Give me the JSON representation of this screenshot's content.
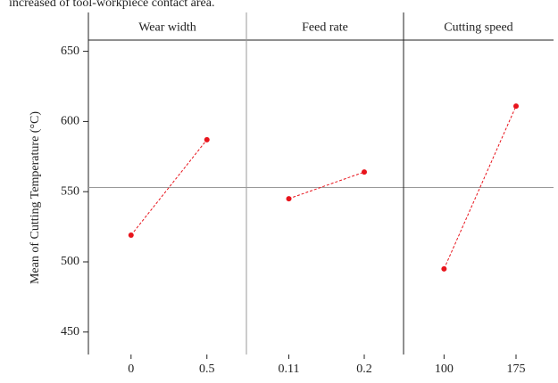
{
  "caption": "increased of tool-workpiece contact area.",
  "chart_data": {
    "type": "main-effects",
    "y_label": "Mean of Cutting Temperature (°C)",
    "panels": [
      {
        "name": "Wear width",
        "categories": [
          "0",
          "0.5"
        ],
        "values": [
          519,
          587
        ]
      },
      {
        "name": "Feed rate",
        "categories": [
          "0.11",
          "0.2"
        ],
        "values": [
          545,
          564
        ]
      },
      {
        "name": "Cutting speed",
        "categories": [
          "100",
          "175"
        ],
        "values": [
          495,
          611
        ]
      }
    ],
    "color": "#e8141c",
    "reference_line": 553,
    "ylim": [
      434,
      658
    ],
    "yticks": [
      450,
      500,
      550,
      600,
      650
    ]
  }
}
